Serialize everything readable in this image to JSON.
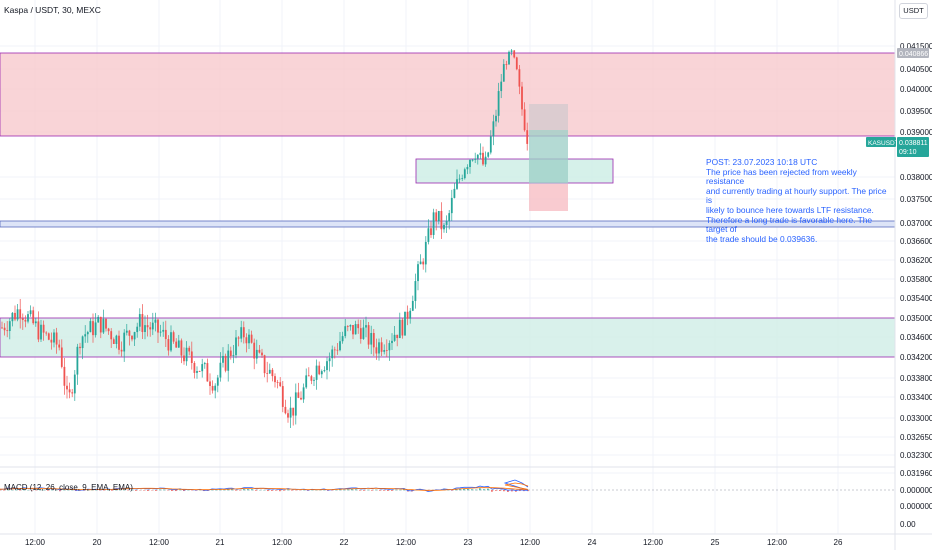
{
  "header": {
    "title": "Kaspa / USDT, 30, MEXC"
  },
  "currency_button": "USDT",
  "macd_label": "MACD (12, 26, close, 9, EMA, EMA)",
  "note": {
    "lines": [
      "POST: 23.07.2023 10:18 UTC",
      "The price has been rejected from weekly resistance",
      "and currently trading at hourly support. The price is",
      "likely to bounce here towards LTF resistance.",
      "Therefore a long trade is favorable here. The target of",
      "the trade should be 0.039636."
    ]
  },
  "price_tags": {
    "upper": {
      "value": "0.040866",
      "color": "#b2b5be"
    },
    "symbol": "KASUSDT",
    "last": "0.038811",
    "countdown": "09:10",
    "last_color": "#26a69a"
  },
  "colors": {
    "up": "#26a69a",
    "down": "#ef5350",
    "zone_red": "#f7c9cd",
    "zone_green": "#cfeee6",
    "zone_border": "#9c27b0",
    "macd_line": "#2962ff",
    "signal_line": "#ff6d00"
  },
  "chart_data": {
    "type": "candlestick",
    "title": "Kaspa / USDT, 30, MEXC",
    "y_ticks": [
      "0.041500",
      "0.040500",
      "0.040000",
      "0.039500",
      "0.039000",
      "0.038000",
      "0.037500",
      "0.037000",
      "0.036600",
      "0.036200",
      "0.035800",
      "0.035400",
      "0.035000",
      "0.034600",
      "0.034200",
      "0.033800",
      "0.033400",
      "0.033000",
      "0.032650",
      "0.032300",
      "0.031960"
    ],
    "x_ticks": [
      "12:00",
      "20",
      "12:00",
      "21",
      "12:00",
      "22",
      "12:00",
      "23",
      "12:00",
      "24",
      "12:00",
      "25",
      "12:00",
      "26"
    ],
    "macd_ticks": [
      "0.000000",
      "0.000000",
      "0.00"
    ],
    "zones": [
      {
        "name": "weekly resistance",
        "from": 0.039,
        "to": 0.0409,
        "color": "red"
      },
      {
        "name": "hourly support",
        "from": 0.0379,
        "to": 0.0384,
        "color": "green"
      },
      {
        "name": "resistance line band",
        "from": 0.0369,
        "to": 0.03705,
        "color": "blue"
      },
      {
        "name": "lower support",
        "from": 0.0341,
        "to": 0.035,
        "color": "green"
      }
    ],
    "long_position": {
      "entry": 0.03835,
      "target": 0.039636,
      "stop": 0.0373
    },
    "last_price": 0.038811
  }
}
